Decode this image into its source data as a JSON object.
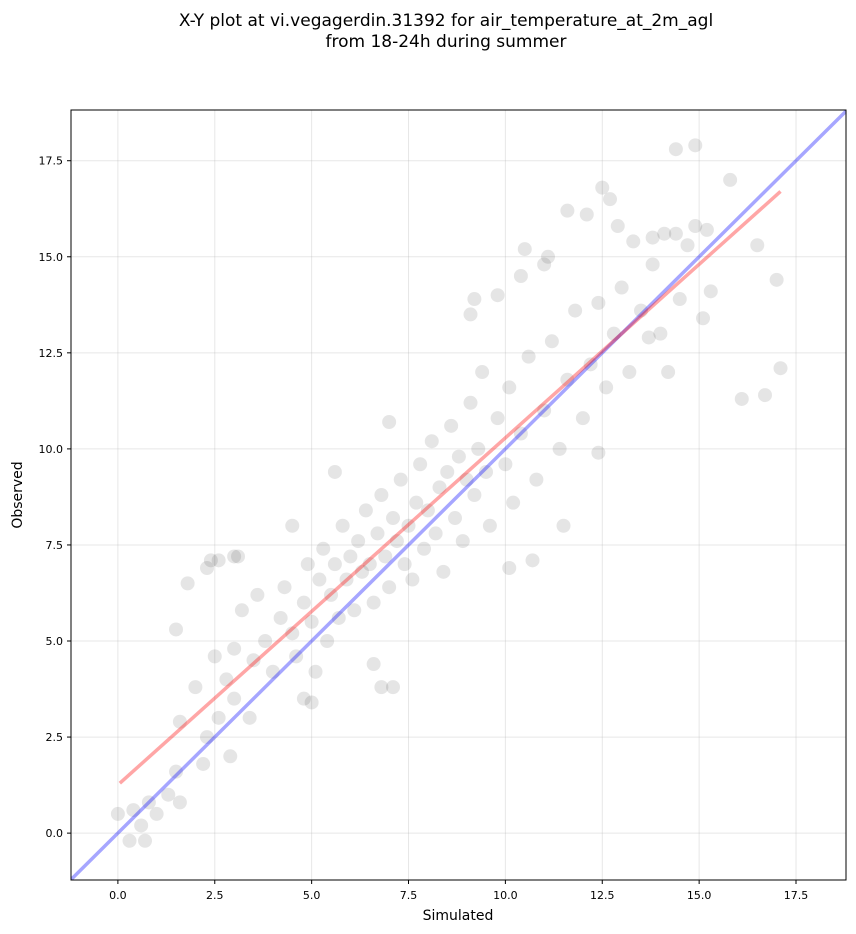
{
  "chart_data": {
    "type": "scatter",
    "title": "X-Y plot at vi.vegagerdin.31392 for air_temperature_at_2m_agl\nfrom 18-24h during summer",
    "xlabel": "Simulated",
    "ylabel": "Observed",
    "xlim": [
      -1.21,
      18.79
    ],
    "ylim": [
      -1.22,
      18.82
    ],
    "xticks": [
      {
        "value": 0,
        "label": "0.0"
      },
      2.5,
      {
        "value": 5,
        "label": "5.0"
      },
      7.5,
      {
        "value": 10,
        "label": "10.0"
      },
      12.5,
      {
        "value": 15,
        "label": "15.0"
      },
      17.5
    ],
    "yticks": [
      {
        "value": 0,
        "label": "0.0"
      },
      2.5,
      {
        "value": 5,
        "label": "5.0"
      },
      7.5,
      {
        "value": 10,
        "label": "10.0"
      },
      12.5,
      {
        "value": 15,
        "label": "15.0"
      },
      17.5
    ],
    "grid": true,
    "series": [
      {
        "type": "scatter",
        "color": "#000000",
        "x": [
          0,
          0.3,
          0.4,
          0.6,
          0.7,
          0.8,
          1.0,
          1.3,
          1.5,
          1.6,
          1.5,
          1.8,
          1.6,
          2.3,
          2.4,
          2.6,
          3.0,
          2.2,
          2.3,
          2.9,
          3.0,
          14.4,
          14.9,
          15.8,
          12.5,
          12.7,
          11.6,
          16.1,
          16.7,
          17.0,
          17.1,
          16.5,
          15.1,
          15.3,
          14.2,
          13.7,
          12.4,
          11.5,
          10.7,
          10.1,
          6.8,
          7.1,
          6.6,
          5.0,
          4.8,
          3.1,
          4.5,
          5.6,
          7.0,
          9.2,
          9.1,
          9.8,
          10.4,
          10.5,
          11.0,
          11.1,
          12.1,
          12.9,
          13.3,
          13.8,
          14.1,
          14.4,
          14.7,
          14.9,
          15.2,
          14.5,
          3.5,
          3.8,
          4.0,
          4.2,
          4.3,
          4.5,
          4.6,
          4.8,
          4.9,
          5.0,
          5.1,
          5.2,
          5.3,
          5.4,
          5.5,
          5.6,
          5.7,
          5.8,
          5.9,
          6.0,
          6.1,
          6.2,
          6.3,
          6.4,
          6.5,
          6.6,
          6.7,
          6.8,
          6.9,
          7.0,
          7.1,
          7.2,
          7.3,
          7.4,
          7.5,
          7.6,
          7.7,
          7.8,
          7.9,
          8.0,
          8.1,
          8.2,
          8.3,
          8.4,
          8.5,
          8.6,
          8.7,
          8.8,
          8.9,
          9.0,
          9.1,
          9.2,
          9.3,
          9.4,
          9.5,
          9.6,
          9.8,
          10.0,
          10.1,
          10.2,
          10.4,
          10.6,
          10.8,
          11.0,
          11.2,
          11.4,
          11.6,
          11.8,
          12.0,
          12.2,
          12.4,
          12.6,
          12.8,
          13.0,
          13.2,
          13.5,
          13.8,
          14.0,
          2.0,
          2.5,
          2.8,
          3.2,
          3.4,
          3.6,
          2.6,
          3.0
        ],
        "values": [
          0.5,
          -0.2,
          0.6,
          0.2,
          -0.2,
          0.8,
          0.5,
          1.0,
          1.6,
          0.8,
          5.3,
          6.5,
          2.9,
          6.9,
          7.1,
          7.1,
          7.2,
          1.8,
          2.5,
          2.0,
          3.5,
          17.8,
          17.9,
          17.0,
          16.8,
          16.5,
          16.2,
          11.3,
          11.4,
          14.4,
          12.1,
          15.3,
          13.4,
          14.1,
          12.0,
          12.9,
          9.9,
          8.0,
          7.1,
          6.9,
          3.8,
          3.8,
          4.4,
          3.4,
          3.5,
          7.2,
          8.0,
          9.4,
          10.7,
          13.9,
          13.5,
          14.0,
          14.5,
          15.2,
          14.8,
          15.0,
          16.1,
          15.8,
          15.4,
          15.5,
          15.6,
          15.6,
          15.3,
          15.8,
          15.7,
          13.9,
          4.5,
          5.0,
          4.2,
          5.6,
          6.4,
          5.2,
          4.6,
          6.0,
          7.0,
          5.5,
          4.2,
          6.6,
          7.4,
          5.0,
          6.2,
          7.0,
          5.6,
          8.0,
          6.6,
          7.2,
          5.8,
          7.6,
          6.8,
          8.4,
          7.0,
          6.0,
          7.8,
          8.8,
          7.2,
          6.4,
          8.2,
          7.6,
          9.2,
          7.0,
          8.0,
          6.6,
          8.6,
          9.6,
          7.4,
          8.4,
          10.2,
          7.8,
          9.0,
          6.8,
          9.4,
          10.6,
          8.2,
          9.8,
          7.6,
          9.2,
          11.2,
          8.8,
          10.0,
          12.0,
          9.4,
          8.0,
          10.8,
          9.6,
          11.6,
          8.6,
          10.4,
          12.4,
          9.2,
          11.0,
          12.8,
          10.0,
          11.8,
          13.6,
          10.8,
          12.2,
          13.8,
          11.6,
          13.0,
          14.2,
          12.0,
          13.6,
          14.8,
          13.0,
          3.8,
          4.6,
          4.0,
          5.8,
          3.0,
          6.2,
          3.0,
          4.8
        ]
      },
      {
        "type": "line",
        "color": "#0000ff",
        "x": [
          -1.21,
          18.79
        ],
        "values": [
          -1.21,
          18.79
        ]
      },
      {
        "type": "line",
        "color": "#ff0000",
        "x": [
          0.05,
          17.1
        ],
        "values": [
          1.3,
          16.7
        ]
      }
    ]
  }
}
